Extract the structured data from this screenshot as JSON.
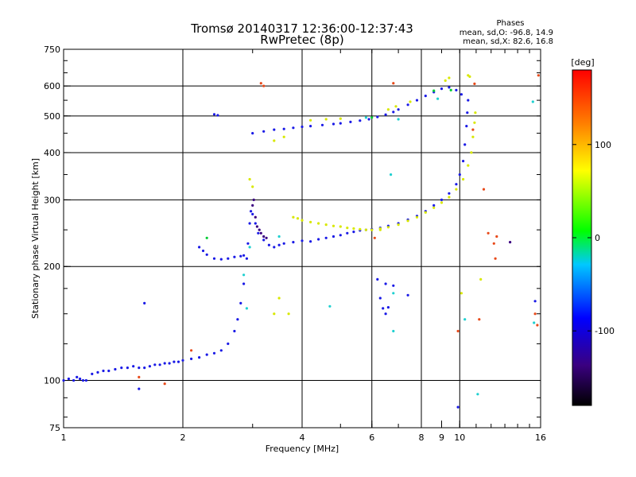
{
  "chart_data": {
    "type": "scatter",
    "title": "Tromsø 20140317 12:36:00-12:37:43",
    "subtitle": "RwPretec (8p)",
    "stats": {
      "heading": "Phases",
      "line_o": "mean, sd,O: -96.8, 14.9",
      "line_x": "mean, sd,X:  82.6, 16.8"
    },
    "xlabel": "Frequency [MHz]",
    "ylabel": "Stationary phase Virtual Height [km]",
    "x_scale": "log",
    "y_scale": "log",
    "xlim": [
      1,
      16
    ],
    "ylim": [
      75,
      750
    ],
    "x_ticks": [
      1,
      2,
      4,
      6,
      8,
      9,
      10,
      16
    ],
    "x_tick_labels": [
      "1",
      "2",
      "4",
      "6",
      "8",
      "9",
      "10",
      "16"
    ],
    "y_ticks": [
      75,
      100,
      200,
      300,
      400,
      500,
      600,
      750
    ],
    "y_tick_labels": [
      "75",
      "100",
      "200",
      "300",
      "400",
      "500",
      "600",
      "750"
    ],
    "grid_x": [
      2,
      4,
      6,
      8,
      10
    ],
    "grid_y": [
      100,
      200,
      300,
      400,
      500,
      600
    ],
    "grid": true,
    "colorbar": {
      "label": "[deg]",
      "min": -180,
      "max": 180,
      "ticks": [
        100,
        0,
        -100
      ],
      "tick_labels": [
        "100",
        "0",
        "-100"
      ],
      "colors": [
        "#000000",
        "#3a0080",
        "#0000ff",
        "#00c8ff",
        "#00ff00",
        "#ffff00",
        "#ff7f00",
        "#ff0000"
      ]
    },
    "series": [
      {
        "color": "#1a1ae6",
        "points": [
          [
            1.0,
            100
          ],
          [
            1.03,
            101
          ],
          [
            1.06,
            100
          ],
          [
            1.08,
            102
          ],
          [
            1.1,
            101
          ],
          [
            1.12,
            100
          ],
          [
            1.14,
            100
          ],
          [
            1.18,
            104
          ],
          [
            1.22,
            105
          ],
          [
            1.26,
            106
          ],
          [
            1.3,
            106
          ],
          [
            1.35,
            107
          ],
          [
            1.4,
            108
          ],
          [
            1.45,
            108
          ],
          [
            1.5,
            109
          ],
          [
            1.55,
            108
          ],
          [
            1.6,
            108
          ],
          [
            1.65,
            109
          ],
          [
            1.7,
            110
          ],
          [
            1.75,
            110
          ],
          [
            1.8,
            111
          ],
          [
            1.85,
            111
          ],
          [
            1.9,
            112
          ],
          [
            1.95,
            112
          ],
          [
            2.0,
            113
          ],
          [
            2.1,
            114
          ],
          [
            2.2,
            115
          ],
          [
            2.3,
            117
          ],
          [
            2.4,
            118
          ],
          [
            2.5,
            120
          ],
          [
            2.6,
            125
          ],
          [
            2.7,
            135
          ],
          [
            2.75,
            145
          ],
          [
            2.8,
            160
          ],
          [
            2.85,
            180
          ],
          [
            2.9,
            210
          ],
          [
            2.92,
            230
          ],
          [
            2.95,
            260
          ],
          [
            2.97,
            280
          ],
          [
            3.0,
            275
          ],
          [
            3.05,
            260
          ],
          [
            3.1,
            245
          ],
          [
            3.2,
            235
          ],
          [
            3.3,
            228
          ],
          [
            3.4,
            225
          ],
          [
            3.5,
            228
          ],
          [
            3.6,
            230
          ],
          [
            3.8,
            232
          ],
          [
            4.0,
            234
          ],
          [
            4.2,
            233
          ],
          [
            4.4,
            236
          ],
          [
            4.6,
            238
          ],
          [
            4.8,
            240
          ],
          [
            5.0,
            242
          ],
          [
            5.2,
            245
          ],
          [
            5.4,
            247
          ],
          [
            5.6,
            249
          ],
          [
            5.8,
            250
          ],
          [
            6.0,
            251
          ],
          [
            6.3,
            253
          ],
          [
            6.6,
            256
          ],
          [
            7.0,
            260
          ],
          [
            7.4,
            266
          ],
          [
            7.8,
            272
          ],
          [
            8.2,
            280
          ],
          [
            8.6,
            290
          ],
          [
            9.0,
            300
          ],
          [
            9.4,
            312
          ],
          [
            9.8,
            330
          ],
          [
            10.0,
            350
          ],
          [
            10.2,
            380
          ],
          [
            10.3,
            420
          ],
          [
            10.4,
            470
          ],
          [
            10.45,
            510
          ],
          [
            10.5,
            550
          ],
          [
            2.2,
            225
          ],
          [
            2.25,
            220
          ],
          [
            2.3,
            215
          ],
          [
            2.4,
            210
          ],
          [
            2.5,
            209
          ],
          [
            2.6,
            210
          ],
          [
            2.7,
            212
          ],
          [
            2.8,
            213
          ],
          [
            2.85,
            214
          ],
          [
            3.0,
            450
          ],
          [
            3.2,
            455
          ],
          [
            3.4,
            460
          ],
          [
            3.6,
            462
          ],
          [
            3.8,
            465
          ],
          [
            4.0,
            468
          ],
          [
            4.2,
            470
          ],
          [
            4.5,
            473
          ],
          [
            4.8,
            476
          ],
          [
            5.0,
            478
          ],
          [
            5.3,
            482
          ],
          [
            5.6,
            486
          ],
          [
            5.9,
            490
          ],
          [
            6.2,
            497
          ],
          [
            6.5,
            504
          ],
          [
            6.8,
            512
          ],
          [
            7.0,
            520
          ],
          [
            7.4,
            535
          ],
          [
            7.8,
            550
          ],
          [
            8.2,
            565
          ],
          [
            8.6,
            578
          ],
          [
            9.0,
            590
          ],
          [
            9.4,
            595
          ],
          [
            9.8,
            585
          ],
          [
            10.1,
            570
          ],
          [
            2.4,
            505
          ],
          [
            2.45,
            502
          ],
          [
            1.6,
            160
          ],
          [
            1.55,
            95
          ],
          [
            6.2,
            185
          ],
          [
            6.3,
            165
          ],
          [
            6.4,
            155
          ],
          [
            6.5,
            150
          ],
          [
            7.4,
            168
          ],
          [
            9.9,
            85
          ],
          [
            15.5,
            162
          ],
          [
            6.5,
            180
          ],
          [
            6.8,
            178
          ],
          [
            6.6,
            156
          ]
        ]
      },
      {
        "color": "#d8e800",
        "points": [
          [
            3.8,
            270
          ],
          [
            3.9,
            268
          ],
          [
            4.0,
            265
          ],
          [
            4.2,
            262
          ],
          [
            4.4,
            260
          ],
          [
            4.6,
            258
          ],
          [
            4.8,
            256
          ],
          [
            5.0,
            255
          ],
          [
            5.2,
            253
          ],
          [
            5.4,
            252
          ],
          [
            5.6,
            251
          ],
          [
            5.8,
            250
          ],
          [
            6.0,
            250
          ],
          [
            6.3,
            252
          ],
          [
            6.6,
            254
          ],
          [
            7.0,
            258
          ],
          [
            7.4,
            264
          ],
          [
            7.8,
            270
          ],
          [
            8.2,
            278
          ],
          [
            8.6,
            286
          ],
          [
            9.0,
            295
          ],
          [
            9.4,
            305
          ],
          [
            9.8,
            320
          ],
          [
            10.2,
            340
          ],
          [
            10.5,
            370
          ],
          [
            10.7,
            400
          ],
          [
            10.8,
            440
          ],
          [
            10.9,
            480
          ],
          [
            10.95,
            510
          ],
          [
            9.2,
            620
          ],
          [
            9.4,
            630
          ],
          [
            10.5,
            640
          ],
          [
            10.6,
            635
          ],
          [
            4.2,
            487
          ],
          [
            4.6,
            490
          ],
          [
            5.0,
            492
          ],
          [
            6.6,
            520
          ],
          [
            6.9,
            530
          ],
          [
            7.5,
            545
          ],
          [
            3.0,
            325
          ],
          [
            2.95,
            340
          ],
          [
            3.4,
            430
          ],
          [
            3.6,
            440
          ],
          [
            6.3,
            250
          ],
          [
            11.3,
            185
          ],
          [
            10.1,
            170
          ],
          [
            3.5,
            165
          ],
          [
            3.7,
            150
          ],
          [
            3.4,
            150
          ]
        ]
      },
      {
        "color": "#1fd0d0",
        "points": [
          [
            2.85,
            190
          ],
          [
            2.95,
            225
          ],
          [
            3.5,
            240
          ],
          [
            5.8,
            495
          ],
          [
            6.8,
            170
          ],
          [
            6.8,
            135
          ],
          [
            7.0,
            490
          ],
          [
            8.8,
            555
          ],
          [
            15.3,
            545
          ],
          [
            10.3,
            145
          ],
          [
            4.7,
            157
          ],
          [
            2.9,
            155
          ],
          [
            11.1,
            92
          ],
          [
            15.4,
            142
          ],
          [
            6.7,
            350
          ]
        ]
      },
      {
        "color": "#00cc33",
        "points": [
          [
            8.6,
            583
          ],
          [
            9.5,
            585
          ],
          [
            2.3,
            238
          ],
          [
            6.0,
            495
          ]
        ]
      },
      {
        "color": "#e84a1a",
        "points": [
          [
            3.15,
            610
          ],
          [
            6.8,
            610
          ],
          [
            10.9,
            608
          ],
          [
            11.5,
            320
          ],
          [
            11.2,
            145
          ],
          [
            11.8,
            245
          ],
          [
            12.2,
            230
          ],
          [
            12.3,
            210
          ],
          [
            12.4,
            240
          ],
          [
            15.5,
            150
          ],
          [
            15.7,
            140
          ],
          [
            15.8,
            640
          ],
          [
            9.9,
            135
          ],
          [
            6.1,
            238
          ],
          [
            3.2,
            600
          ],
          [
            1.8,
            98
          ],
          [
            1.55,
            102
          ],
          [
            2.1,
            120
          ],
          [
            10.8,
            460
          ]
        ]
      },
      {
        "color": "#3a0080",
        "points": [
          [
            3.0,
            290
          ],
          [
            3.02,
            300
          ],
          [
            3.05,
            270
          ],
          [
            3.08,
            255
          ],
          [
            3.12,
            250
          ],
          [
            3.15,
            245
          ],
          [
            3.2,
            240
          ],
          [
            3.25,
            238
          ],
          [
            13.4,
            232
          ]
        ]
      }
    ]
  }
}
